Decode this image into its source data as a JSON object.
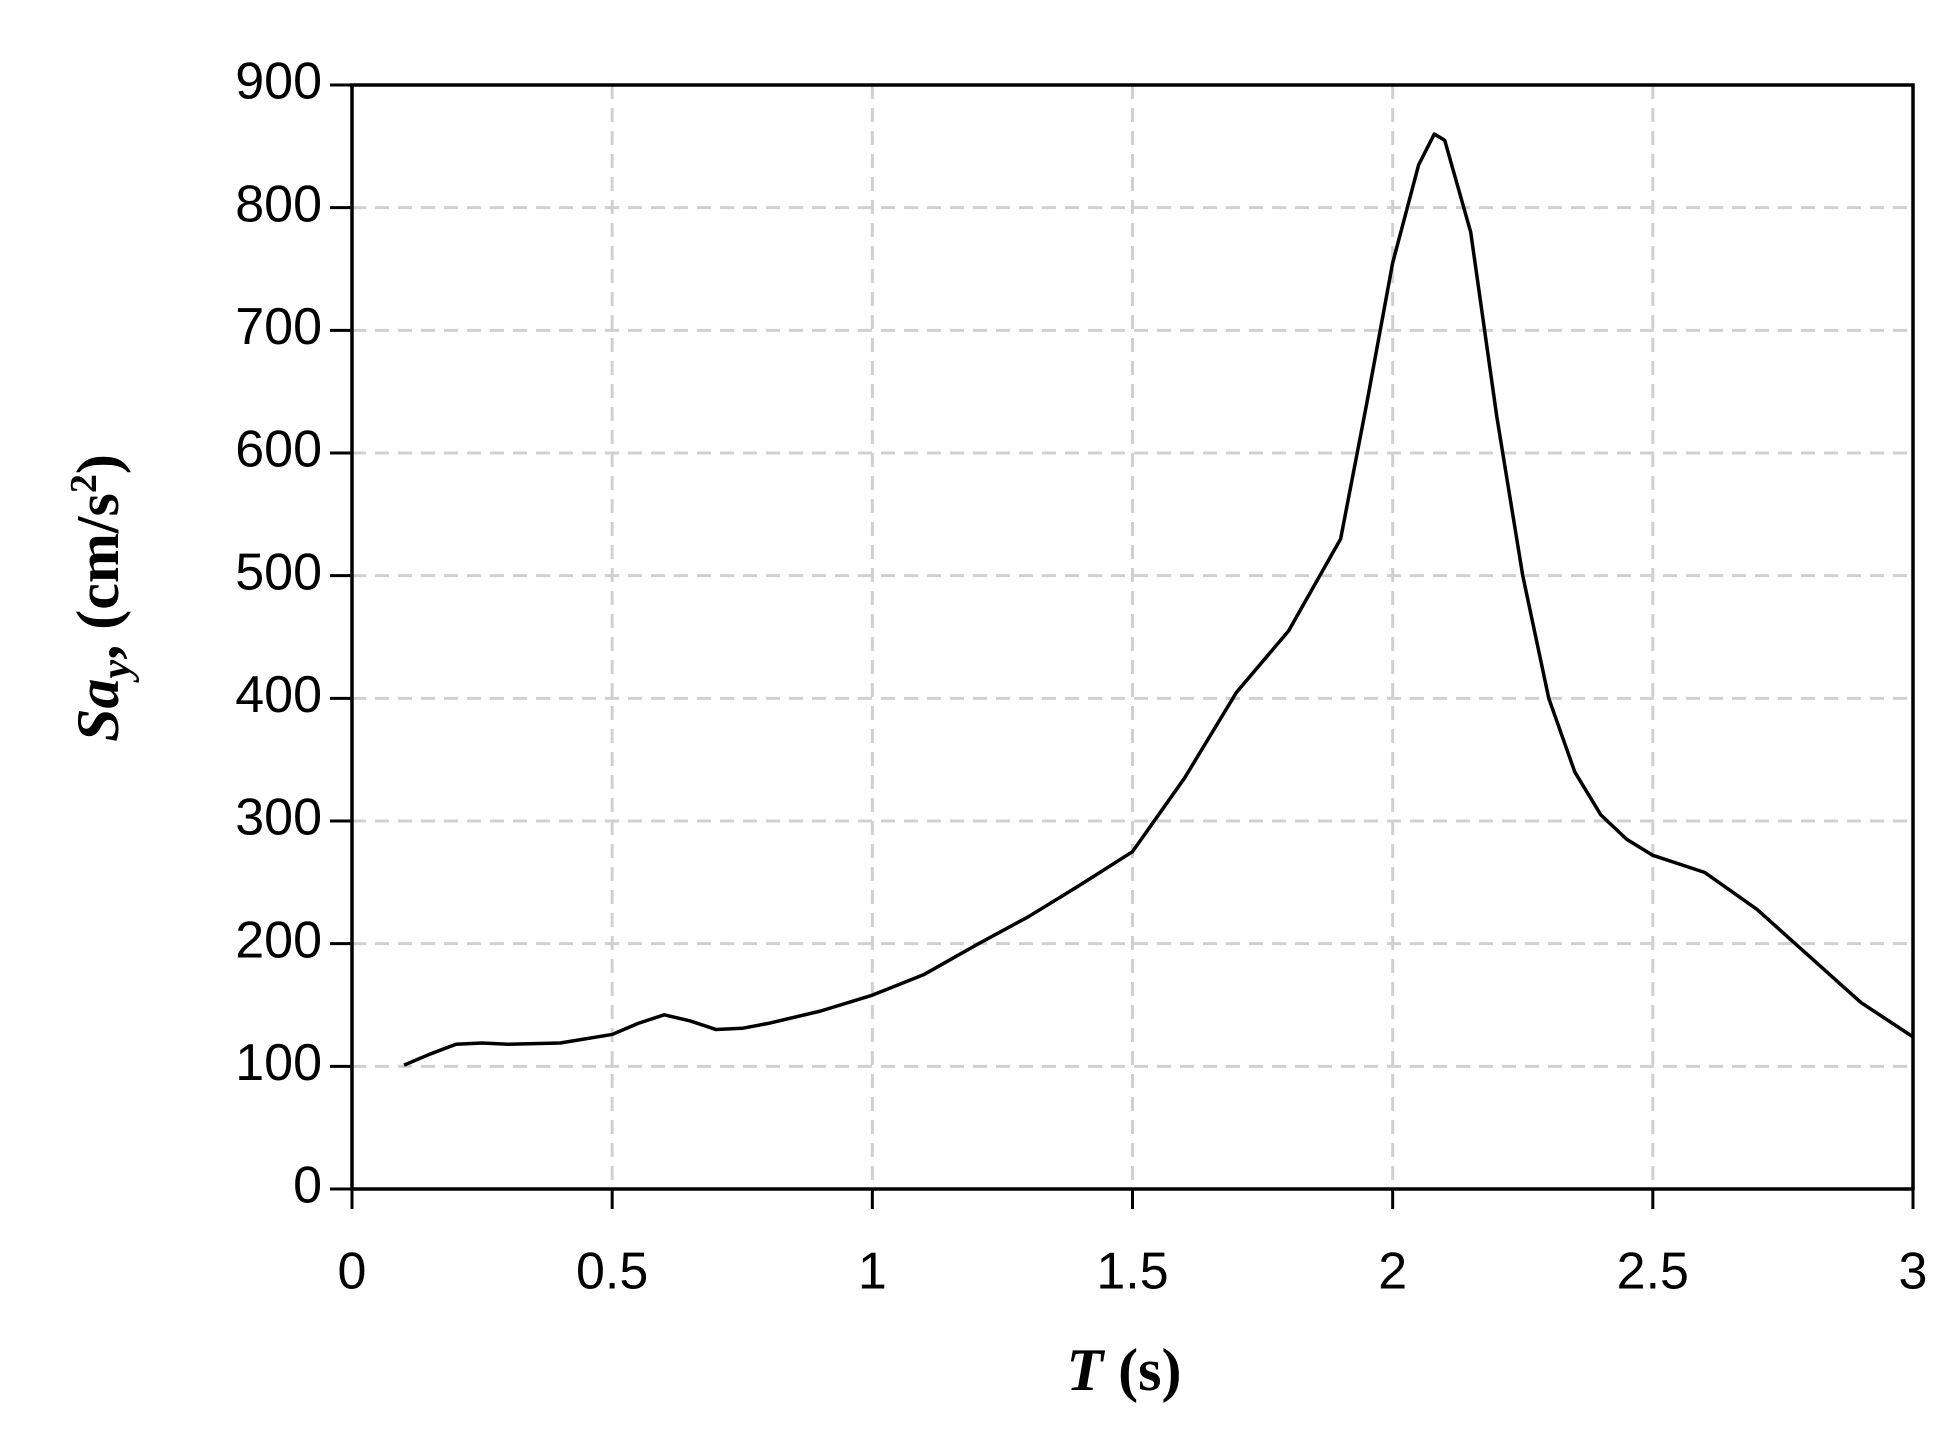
{
  "chart_data": {
    "type": "line",
    "xlabel": [
      "T",
      " (s)"
    ],
    "ylabel": [
      "Sa",
      "y",
      ", (cm/s",
      "2",
      ")"
    ],
    "x": [
      0.1,
      0.15,
      0.2,
      0.25,
      0.3,
      0.4,
      0.5,
      0.55,
      0.6,
      0.65,
      0.7,
      0.75,
      0.8,
      0.9,
      1.0,
      1.1,
      1.2,
      1.3,
      1.4,
      1.5,
      1.6,
      1.7,
      1.8,
      1.9,
      1.95,
      2.0,
      2.05,
      2.08,
      2.1,
      2.15,
      2.2,
      2.25,
      2.3,
      2.35,
      2.4,
      2.45,
      2.5,
      2.6,
      2.7,
      2.8,
      2.9,
      3.0
    ],
    "series": [
      {
        "color": "#000000",
        "values": [
          101,
          110,
          118,
          119,
          118,
          119,
          126,
          135,
          142,
          137,
          130,
          131,
          135,
          145,
          158,
          175,
          199,
          222,
          248,
          275,
          335,
          405,
          455,
          530,
          640,
          755,
          835,
          860,
          855,
          780,
          630,
          500,
          400,
          340,
          305,
          285,
          272,
          258,
          228,
          190,
          152,
          124
        ]
      }
    ],
    "xlim": [
      0,
      3
    ],
    "ylim": [
      0,
      900
    ],
    "xticks": [
      0,
      0.5,
      1,
      1.5,
      2,
      2.5,
      3
    ],
    "yticks": [
      0,
      100,
      200,
      300,
      400,
      500,
      600,
      700,
      800,
      900
    ],
    "grid": true
  }
}
